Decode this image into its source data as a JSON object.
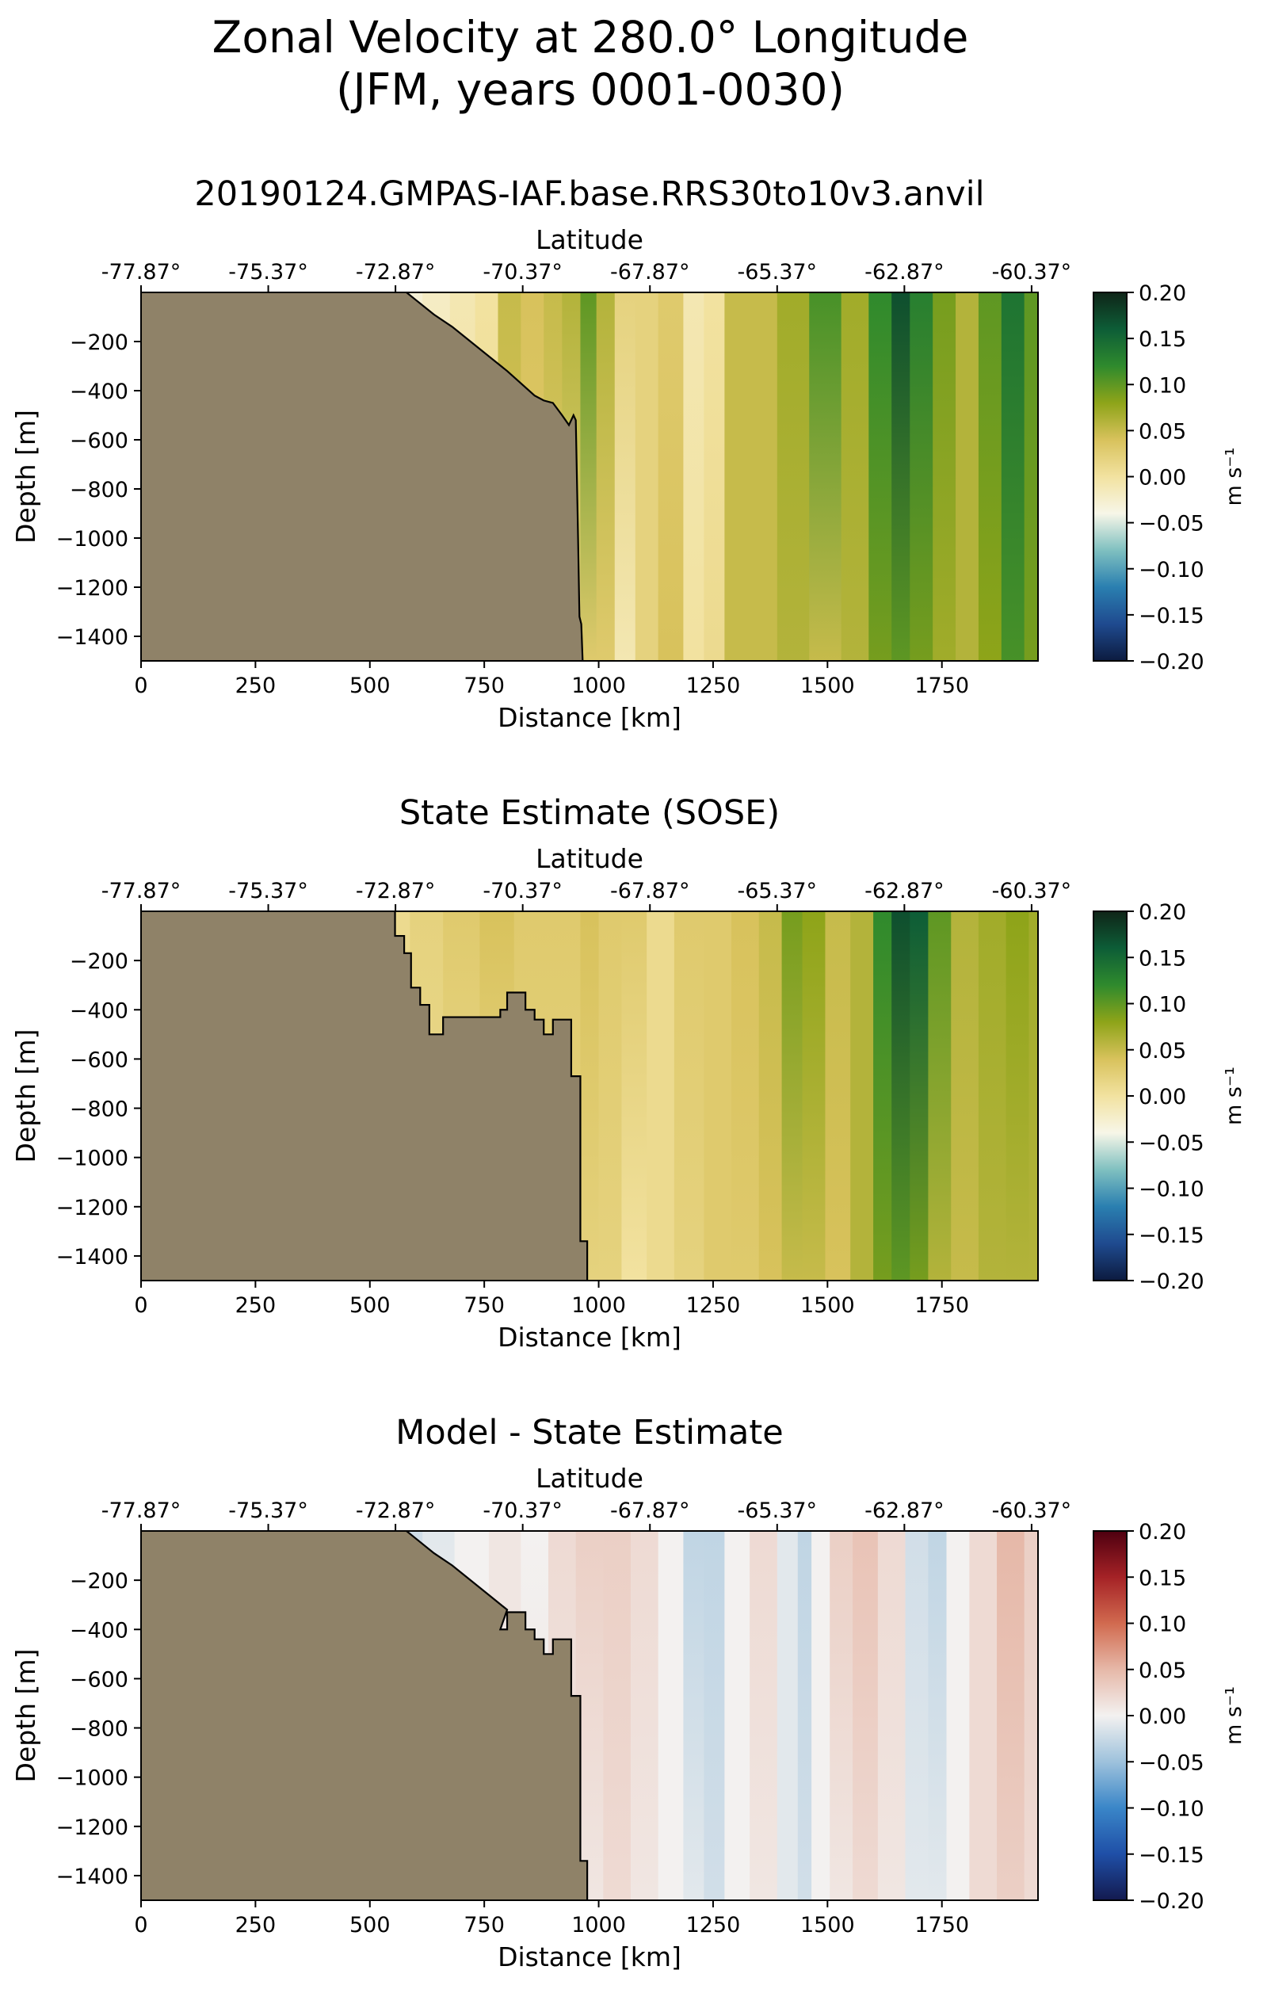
{
  "figure": {
    "title_line1": "Zonal Velocity at 280.0° Longitude",
    "title_line2": "(JFM, years 0001-0030)"
  },
  "colors": {
    "land": "#8f8268",
    "velocity_cmap": [
      "#0c1b3f",
      "#1f4a8f",
      "#2a7fb0",
      "#7fc0c0",
      "#f7f6e8",
      "#f2e2a0",
      "#d8c25c",
      "#8ea419",
      "#2f8a2d",
      "#0d5d37",
      "#0f2518"
    ],
    "difference_cmap": [
      "#131a4f",
      "#1f4fa7",
      "#3a86c8",
      "#9ec2dc",
      "#f3f1f0",
      "#e6b8a8",
      "#d16a4f",
      "#a52226",
      "#4e0010"
    ]
  },
  "chart_data": [
    {
      "type": "heatmap",
      "title": "20190124.GMPAS-IAF.base.RRS30to10v3.anvil",
      "xlabel": "Distance [km]",
      "ylabel": "Depth [m]",
      "secondary_xlabel": "Latitude",
      "xlim": [
        0,
        1960
      ],
      "ylim": [
        -1500,
        0
      ],
      "x_ticks": [
        0,
        250,
        500,
        750,
        1000,
        1250,
        1500,
        1750
      ],
      "y_ticks": [
        -200,
        -400,
        -600,
        -800,
        -1000,
        -1200,
        -1400
      ],
      "latitude_ticks": [
        "-77.87°",
        "-75.37°",
        "-72.87°",
        "-70.37°",
        "-67.87°",
        "-65.37°",
        "-62.87°",
        "-60.37°"
      ],
      "latitude_tick_distance_km": [
        0,
        278,
        556,
        834,
        1112,
        1390,
        1668,
        1946
      ],
      "colorbar": {
        "label": "m s⁻¹",
        "min": -0.2,
        "max": 0.2,
        "ticks": [
          "0.20",
          "0.15",
          "0.10",
          "0.05",
          "0.00",
          "−0.05",
          "−0.10",
          "−0.15",
          "−0.20"
        ]
      },
      "colormap": "velocity",
      "bathymetry": [
        [
          580,
          0
        ],
        [
          600,
          -30
        ],
        [
          640,
          -90
        ],
        [
          680,
          -140
        ],
        [
          720,
          -200
        ],
        [
          760,
          -260
        ],
        [
          800,
          -320
        ],
        [
          830,
          -370
        ],
        [
          860,
          -420
        ],
        [
          880,
          -440
        ],
        [
          900,
          -450
        ],
        [
          920,
          -500
        ],
        [
          935,
          -540
        ],
        [
          940,
          -520
        ],
        [
          945,
          -500
        ],
        [
          950,
          -520
        ],
        [
          955,
          -1000
        ],
        [
          958,
          -1320
        ],
        [
          962,
          -1350
        ],
        [
          965,
          -1500
        ]
      ],
      "profile_x": [
        580,
        650,
        700,
        760,
        800,
        860,
        900,
        940,
        980,
        1010,
        1060,
        1100,
        1160,
        1210,
        1250,
        1300,
        1360,
        1420,
        1500,
        1560,
        1620,
        1660,
        1700,
        1760,
        1800,
        1860,
        1900,
        1960
      ],
      "profile_surface": [
        -0.03,
        -0.02,
        -0.01,
        0.0,
        0.05,
        0.04,
        0.05,
        0.06,
        0.1,
        0.06,
        0.02,
        0.02,
        0.03,
        -0.01,
        0.0,
        0.05,
        0.05,
        0.07,
        0.11,
        0.07,
        0.12,
        0.17,
        0.13,
        0.09,
        0.06,
        0.1,
        0.14,
        0.1
      ],
      "profile_bottom": [
        -0.02,
        -0.01,
        0.0,
        0.01,
        0.04,
        0.03,
        0.03,
        0.02,
        0.03,
        0.03,
        -0.01,
        0.02,
        0.04,
        0.0,
        0.01,
        0.05,
        0.05,
        0.06,
        0.05,
        0.06,
        0.09,
        0.1,
        0.09,
        0.07,
        0.06,
        0.08,
        0.11,
        0.09
      ]
    },
    {
      "type": "heatmap",
      "title": "State Estimate (SOSE)",
      "xlabel": "Distance [km]",
      "ylabel": "Depth [m]",
      "secondary_xlabel": "Latitude",
      "xlim": [
        0,
        1960
      ],
      "ylim": [
        -1500,
        0
      ],
      "x_ticks": [
        0,
        250,
        500,
        750,
        1000,
        1250,
        1500,
        1750
      ],
      "y_ticks": [
        -200,
        -400,
        -600,
        -800,
        -1000,
        -1200,
        -1400
      ],
      "latitude_ticks": [
        "-77.87°",
        "-75.37°",
        "-72.87°",
        "-70.37°",
        "-67.87°",
        "-65.37°",
        "-62.87°",
        "-60.37°"
      ],
      "latitude_tick_distance_km": [
        0,
        278,
        556,
        834,
        1112,
        1390,
        1668,
        1946
      ],
      "colorbar": {
        "label": "m s⁻¹",
        "min": -0.2,
        "max": 0.2,
        "ticks": [
          "0.20",
          "0.15",
          "0.10",
          "0.05",
          "0.00",
          "−0.05",
          "−0.10",
          "−0.15",
          "−0.20"
        ]
      },
      "colormap": "velocity",
      "bathymetry": [
        [
          555,
          0
        ],
        [
          555,
          -100
        ],
        [
          575,
          -100
        ],
        [
          575,
          -170
        ],
        [
          590,
          -170
        ],
        [
          590,
          -310
        ],
        [
          610,
          -310
        ],
        [
          610,
          -380
        ],
        [
          630,
          -380
        ],
        [
          630,
          -500
        ],
        [
          660,
          -500
        ],
        [
          660,
          -430
        ],
        [
          785,
          -430
        ],
        [
          785,
          -400
        ],
        [
          800,
          -400
        ],
        [
          800,
          -330
        ],
        [
          840,
          -330
        ],
        [
          840,
          -400
        ],
        [
          860,
          -400
        ],
        [
          860,
          -440
        ],
        [
          880,
          -440
        ],
        [
          880,
          -500
        ],
        [
          900,
          -500
        ],
        [
          900,
          -440
        ],
        [
          940,
          -440
        ],
        [
          940,
          -670
        ],
        [
          960,
          -670
        ],
        [
          960,
          -1340
        ],
        [
          975,
          -1340
        ],
        [
          975,
          -1500
        ]
      ],
      "profile_x": [
        555,
        620,
        700,
        780,
        850,
        900,
        940,
        980,
        1020,
        1080,
        1130,
        1200,
        1260,
        1320,
        1380,
        1420,
        1470,
        1520,
        1580,
        1620,
        1660,
        1700,
        1740,
        1800,
        1860,
        1920,
        1960
      ],
      "profile_surface": [
        0.01,
        0.02,
        0.03,
        0.04,
        0.03,
        0.03,
        0.03,
        0.04,
        0.03,
        0.03,
        0.01,
        0.03,
        0.03,
        0.04,
        0.05,
        0.09,
        0.08,
        0.05,
        0.06,
        0.12,
        0.17,
        0.16,
        0.1,
        0.06,
        0.07,
        0.08,
        0.07
      ],
      "profile_bottom": [
        0.01,
        0.01,
        0.01,
        0.01,
        0.02,
        0.02,
        0.02,
        0.02,
        0.02,
        0.0,
        0.01,
        0.02,
        0.03,
        0.03,
        0.04,
        0.05,
        0.05,
        0.04,
        0.06,
        0.09,
        0.1,
        0.09,
        0.06,
        0.05,
        0.06,
        0.06,
        0.06
      ]
    },
    {
      "type": "heatmap",
      "title": "Model - State Estimate",
      "xlabel": "Distance [km]",
      "ylabel": "Depth [m]",
      "secondary_xlabel": "Latitude",
      "xlim": [
        0,
        1960
      ],
      "ylim": [
        -1500,
        0
      ],
      "x_ticks": [
        0,
        250,
        500,
        750,
        1000,
        1250,
        1500,
        1750
      ],
      "y_ticks": [
        -200,
        -400,
        -600,
        -800,
        -1000,
        -1200,
        -1400
      ],
      "latitude_ticks": [
        "-77.87°",
        "-75.37°",
        "-72.87°",
        "-70.37°",
        "-67.87°",
        "-65.37°",
        "-62.87°",
        "-60.37°"
      ],
      "latitude_tick_distance_km": [
        0,
        278,
        556,
        834,
        1112,
        1390,
        1668,
        1946
      ],
      "colorbar": {
        "label": "m s⁻¹",
        "min": -0.2,
        "max": 0.2,
        "ticks": [
          "0.20",
          "0.15",
          "0.10",
          "0.05",
          "0.00",
          "−0.05",
          "−0.10",
          "−0.15",
          "−0.20"
        ]
      },
      "colormap": "difference",
      "bathymetry": [
        [
          580,
          0
        ],
        [
          600,
          -30
        ],
        [
          640,
          -90
        ],
        [
          680,
          -140
        ],
        [
          720,
          -200
        ],
        [
          760,
          -260
        ],
        [
          800,
          -320
        ],
        [
          785,
          -400
        ],
        [
          800,
          -400
        ],
        [
          800,
          -330
        ],
        [
          840,
          -330
        ],
        [
          840,
          -400
        ],
        [
          860,
          -400
        ],
        [
          860,
          -440
        ],
        [
          880,
          -440
        ],
        [
          880,
          -500
        ],
        [
          900,
          -500
        ],
        [
          900,
          -440
        ],
        [
          940,
          -440
        ],
        [
          940,
          -670
        ],
        [
          960,
          -670
        ],
        [
          960,
          -1340
        ],
        [
          975,
          -1340
        ],
        [
          975,
          -1500
        ]
      ],
      "profile_x": [
        580,
        650,
        720,
        800,
        860,
        920,
        980,
        1040,
        1100,
        1160,
        1210,
        1250,
        1300,
        1360,
        1420,
        1450,
        1480,
        1530,
        1580,
        1640,
        1700,
        1740,
        1780,
        1840,
        1900,
        1960
      ],
      "profile_surface": [
        -0.02,
        -0.01,
        0.0,
        0.01,
        0.0,
        0.02,
        0.03,
        0.03,
        0.02,
        0.0,
        -0.03,
        -0.03,
        0.0,
        0.02,
        -0.01,
        -0.03,
        0.0,
        0.03,
        0.04,
        0.02,
        -0.02,
        -0.03,
        0.0,
        0.02,
        0.05,
        0.03
      ],
      "profile_bottom": [
        -0.01,
        0.0,
        0.0,
        0.01,
        0.01,
        0.01,
        0.01,
        0.02,
        0.01,
        0.0,
        -0.01,
        -0.02,
        0.0,
        0.01,
        -0.01,
        -0.02,
        0.0,
        0.01,
        0.02,
        0.01,
        -0.01,
        -0.01,
        0.0,
        0.02,
        0.03,
        0.02
      ]
    }
  ]
}
